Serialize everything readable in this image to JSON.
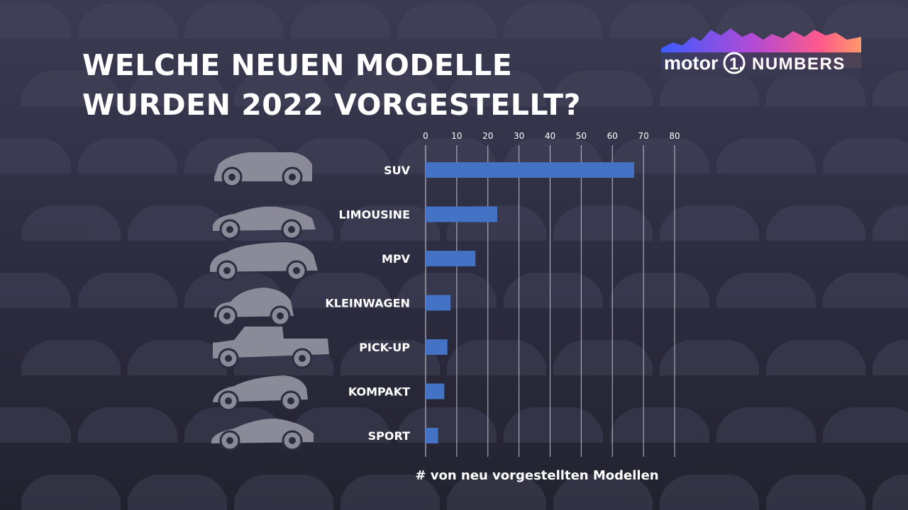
{
  "header": {
    "title_line1": "WELCHE NEUEN MODELLE",
    "title_line2": "WURDEN 2022 VORGESTELLT?"
  },
  "logo": {
    "word": "motor",
    "digit": "1.",
    "suffix": "NUMBERS"
  },
  "icons": [
    "suv-car-icon",
    "sedan-car-icon",
    "mpv-car-icon",
    "small-car-icon",
    "pickup-truck-icon",
    "compact-car-icon",
    "sports-car-icon"
  ],
  "colors": {
    "bar": "#4472c4",
    "background": "#2c2c40",
    "text": "#ffffff",
    "car_silhouette": "#8a8a99"
  },
  "chart_data": {
    "type": "bar",
    "orientation": "horizontal",
    "categories": [
      "SUV",
      "LIMOUSINE",
      "MPV",
      "KLEINWAGEN",
      "PICK-UP",
      "KOMPAKT",
      "SPORT"
    ],
    "values": [
      67,
      23,
      16,
      8,
      7,
      6,
      4
    ],
    "xlabel": "# von neu vorgestellten Modellen",
    "ylabel": "",
    "xlim": [
      0,
      80
    ],
    "x_ticks": [
      0,
      10,
      20,
      30,
      40,
      50,
      60,
      70,
      80
    ],
    "tick_position": "top",
    "grid": true
  }
}
